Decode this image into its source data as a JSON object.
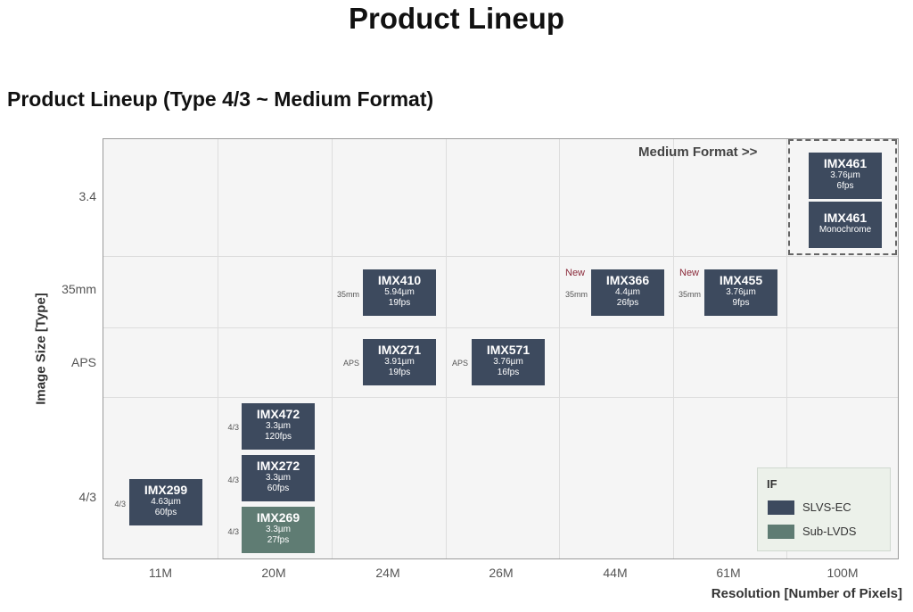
{
  "page_title": "Product Lineup",
  "section_title": "Product Lineup (Type 4/3 ~ Medium Format)",
  "medium_format_label": "Medium Format >>",
  "colors": {
    "SLVS-EC": "#3d4a5e",
    "Sub-LVDS": "#5f7c73"
  },
  "chart_data": {
    "type": "table",
    "xlabel": "Resolution [Number of Pixels]",
    "ylabel": "Image Size [Type]",
    "x_categories": [
      "11M",
      "20M",
      "24M",
      "26M",
      "44M",
      "61M",
      "100M"
    ],
    "y_categories": [
      "3.4",
      "35mm",
      "APS",
      "4/3"
    ],
    "grid": true,
    "legend": {
      "title": "IF",
      "placement": "bottom-right",
      "entries": [
        "SLVS-EC",
        "Sub-LVDS"
      ]
    },
    "products": [
      {
        "name": "IMX461",
        "specs": [
          "3.76µm",
          "6fps"
        ],
        "resolution": "100M",
        "size": "3.4",
        "size_tag": "",
        "new": "",
        "if": "SLVS-EC"
      },
      {
        "name": "IMX461",
        "specs": [
          "Monochrome"
        ],
        "resolution": "100M",
        "size": "3.4",
        "size_tag": "",
        "new": "",
        "if": "SLVS-EC"
      },
      {
        "name": "IMX410",
        "specs": [
          "5.94µm",
          "19fps"
        ],
        "resolution": "24M",
        "size": "35mm",
        "size_tag": "35mm",
        "new": "",
        "if": "SLVS-EC"
      },
      {
        "name": "IMX366",
        "specs": [
          "4.4µm",
          "26fps"
        ],
        "resolution": "44M",
        "size": "35mm",
        "size_tag": "35mm",
        "new": "New",
        "if": "SLVS-EC"
      },
      {
        "name": "IMX455",
        "specs": [
          "3.76µm",
          "9fps"
        ],
        "resolution": "61M",
        "size": "35mm",
        "size_tag": "35mm",
        "new": "New",
        "if": "SLVS-EC"
      },
      {
        "name": "IMX271",
        "specs": [
          "3.91µm",
          "19fps"
        ],
        "resolution": "24M",
        "size": "APS",
        "size_tag": "APS",
        "new": "",
        "if": "SLVS-EC"
      },
      {
        "name": "IMX571",
        "specs": [
          "3.76µm",
          "16fps"
        ],
        "resolution": "26M",
        "size": "APS",
        "size_tag": "APS",
        "new": "",
        "if": "SLVS-EC"
      },
      {
        "name": "IMX472",
        "specs": [
          "3.3µm",
          "120fps"
        ],
        "resolution": "20M",
        "size": "4/3",
        "size_tag": "4/3",
        "new": "",
        "if": "SLVS-EC"
      },
      {
        "name": "IMX272",
        "specs": [
          "3.3µm",
          "60fps"
        ],
        "resolution": "20M",
        "size": "4/3",
        "size_tag": "4/3",
        "new": "",
        "if": "SLVS-EC"
      },
      {
        "name": "IMX269",
        "specs": [
          "3.3µm",
          "27fps"
        ],
        "resolution": "20M",
        "size": "4/3",
        "size_tag": "4/3",
        "new": "",
        "if": "Sub-LVDS"
      },
      {
        "name": "IMX299",
        "specs": [
          "4.63µm",
          "60fps"
        ],
        "resolution": "11M",
        "size": "4/3",
        "size_tag": "4/3",
        "new": "",
        "if": "SLVS-EC"
      }
    ]
  }
}
